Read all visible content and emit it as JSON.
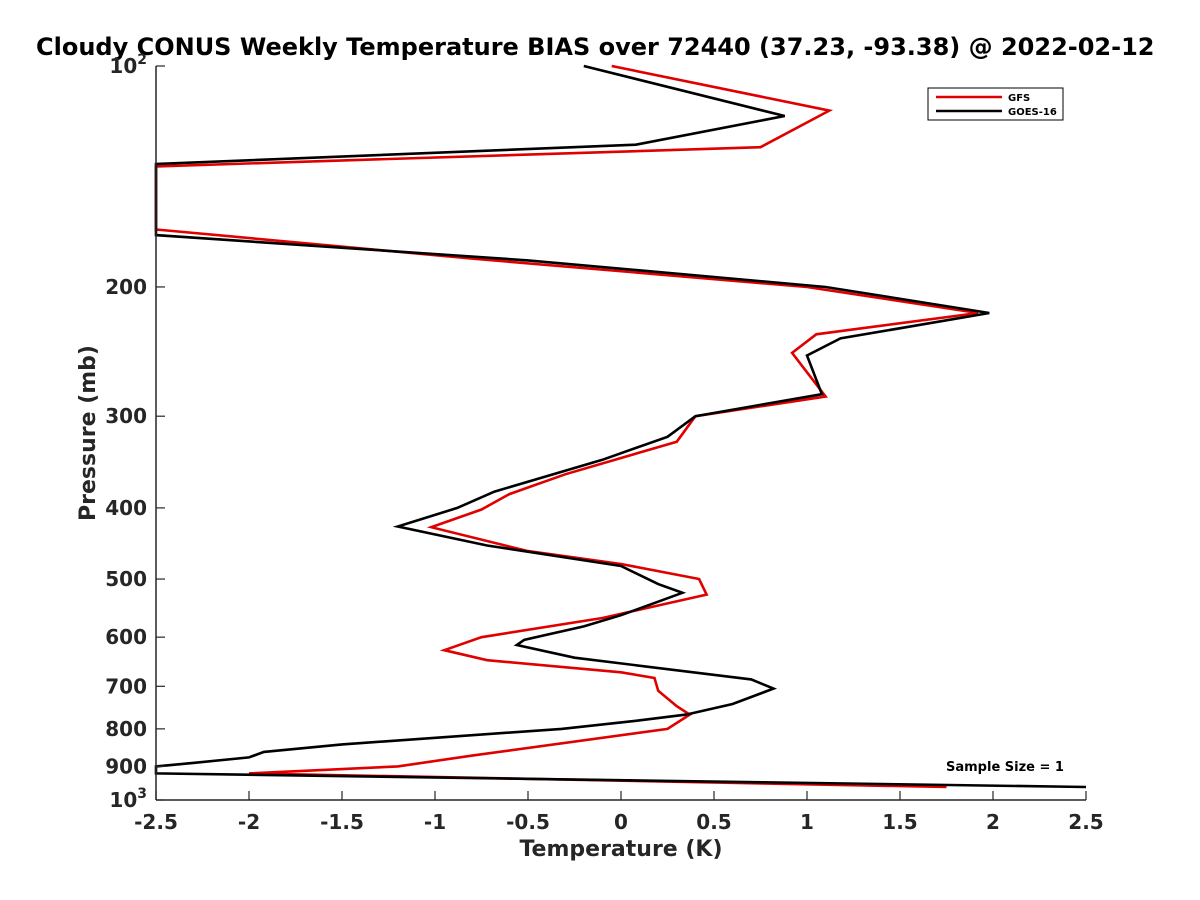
{
  "chart_data": {
    "type": "line",
    "title": "Cloudy CONUS Weekly Temperature BIAS over 72440 (37.23, -93.38) @ 2022-02-12",
    "xlabel": "Temperature (K)",
    "ylabel": "Pressure (mb)",
    "xlim": [
      -2.5,
      2.5
    ],
    "ylim": [
      100,
      1000
    ],
    "y_scale": "log",
    "y_reversed": true,
    "grid": false,
    "legend_position": "top-right",
    "x_ticks": [
      "-2.5",
      "-2",
      "-1.5",
      "-1",
      "-0.5",
      "0",
      "0.5",
      "1",
      "1.5",
      "2",
      "2.5"
    ],
    "x_tick_values": [
      -2.5,
      -2,
      -1.5,
      -1,
      -0.5,
      0,
      0.5,
      1,
      1.5,
      2,
      2.5
    ],
    "y_ticks": [
      {
        "value": 100,
        "base": "10",
        "exp": "2"
      },
      {
        "value": 200,
        "label": "200"
      },
      {
        "value": 300,
        "label": "300"
      },
      {
        "value": 400,
        "label": "400"
      },
      {
        "value": 500,
        "label": "500"
      },
      {
        "value": 600,
        "label": "600"
      },
      {
        "value": 700,
        "label": "700"
      },
      {
        "value": 800,
        "label": "800"
      },
      {
        "value": 900,
        "label": "900"
      },
      {
        "value": 1000,
        "base": "10",
        "exp": "3"
      }
    ],
    "series": [
      {
        "name": "GFS",
        "color": "#e00000",
        "points": [
          [
            -0.05,
            100
          ],
          [
            1.12,
            115
          ],
          [
            0.75,
            129
          ],
          [
            -2.5,
            137
          ],
          [
            -2.5,
            167
          ],
          [
            -0.8,
            183
          ],
          [
            1.0,
            200
          ],
          [
            1.92,
            217
          ],
          [
            1.05,
            232
          ],
          [
            0.92,
            246
          ],
          [
            1.1,
            282
          ],
          [
            0.4,
            300
          ],
          [
            0.3,
            325
          ],
          [
            -0.3,
            360
          ],
          [
            -0.6,
            383
          ],
          [
            -0.75,
            402
          ],
          [
            -1.02,
            425
          ],
          [
            -0.5,
            458
          ],
          [
            0.0,
            477
          ],
          [
            0.42,
            500
          ],
          [
            0.46,
            525
          ],
          [
            -0.1,
            565
          ],
          [
            -0.75,
            600
          ],
          [
            -0.95,
            625
          ],
          [
            -0.72,
            645
          ],
          [
            0.0,
            670
          ],
          [
            0.18,
            682
          ],
          [
            0.2,
            710
          ],
          [
            0.3,
            745
          ],
          [
            0.37,
            765
          ],
          [
            0.25,
            800
          ],
          [
            -0.8,
            870
          ],
          [
            -1.2,
            900
          ],
          [
            -2.0,
            920
          ],
          [
            1.75,
            960
          ]
        ]
      },
      {
        "name": "GOES-16",
        "color": "#000000",
        "points": [
          [
            -0.2,
            100
          ],
          [
            0.88,
            117
          ],
          [
            0.08,
            128
          ],
          [
            -2.5,
            136
          ],
          [
            -2.5,
            170
          ],
          [
            -0.5,
            184
          ],
          [
            1.1,
            200
          ],
          [
            1.98,
            217
          ],
          [
            1.18,
            235
          ],
          [
            1.0,
            248
          ],
          [
            1.08,
            280
          ],
          [
            0.4,
            300
          ],
          [
            0.25,
            320
          ],
          [
            -0.1,
            344
          ],
          [
            -0.68,
            380
          ],
          [
            -0.88,
            400
          ],
          [
            -1.2,
            424
          ],
          [
            -0.72,
            450
          ],
          [
            0.0,
            480
          ],
          [
            0.2,
            508
          ],
          [
            0.33,
            522
          ],
          [
            0.0,
            560
          ],
          [
            -0.2,
            580
          ],
          [
            -0.52,
            605
          ],
          [
            -0.56,
            615
          ],
          [
            -0.25,
            640
          ],
          [
            0.7,
            685
          ],
          [
            0.82,
            705
          ],
          [
            0.6,
            740
          ],
          [
            0.35,
            765
          ],
          [
            0.08,
            780
          ],
          [
            -0.32,
            800
          ],
          [
            -1.5,
            840
          ],
          [
            -1.92,
            860
          ],
          [
            -2.0,
            875
          ],
          [
            -2.3,
            890
          ],
          [
            -2.5,
            900
          ],
          [
            -2.5,
            920
          ],
          [
            2.5,
            960
          ]
        ]
      }
    ],
    "annotations": [
      {
        "text": "Sample Size = 1",
        "position": "bottom-right"
      }
    ]
  }
}
